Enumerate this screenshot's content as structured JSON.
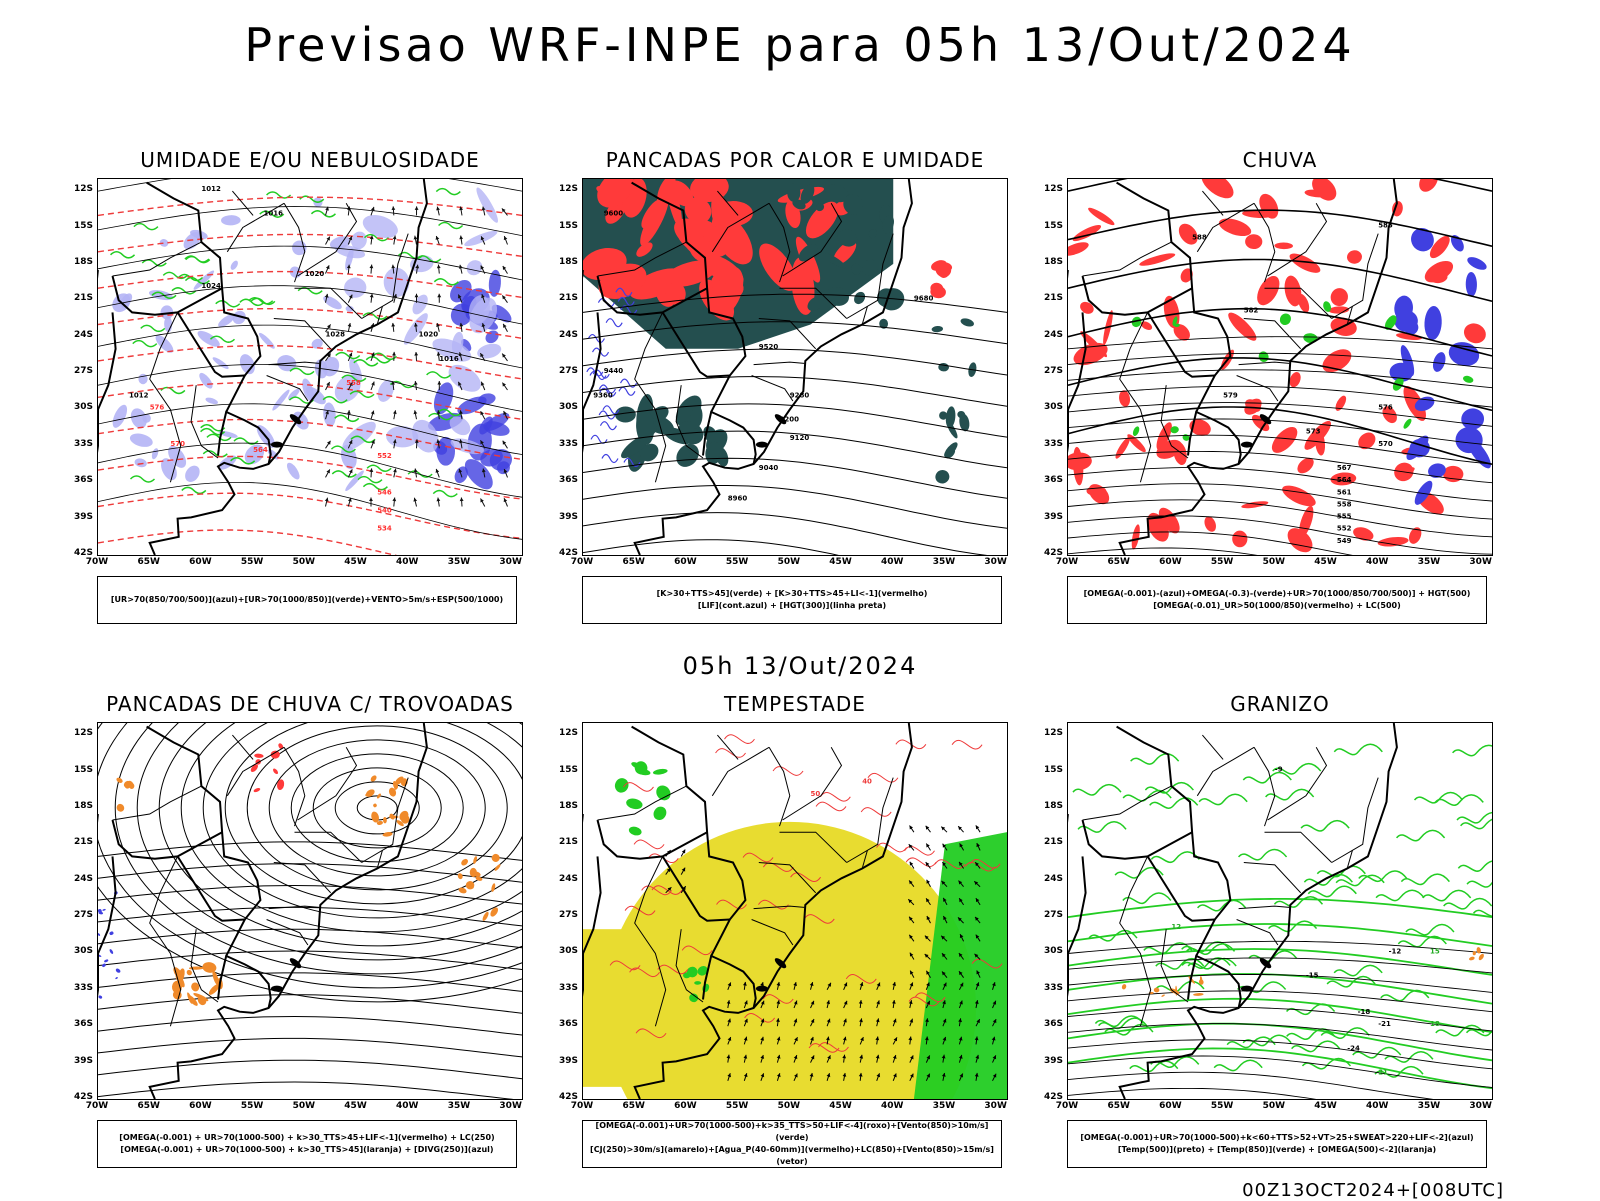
{
  "header": {
    "title": "Previsao WRF-INPE  para 05h 13/Out/2024"
  },
  "middle_title": "05h 13/Out/2024",
  "footer": "00Z13OCT2024+[008UTC]",
  "axes": {
    "lat_labels": [
      "12S",
      "15S",
      "18S",
      "21S",
      "24S",
      "27S",
      "30S",
      "33S",
      "36S",
      "39S",
      "42S"
    ],
    "lon_labels": [
      "70W",
      "65W",
      "60W",
      "55W",
      "50W",
      "45W",
      "40W",
      "35W",
      "30W"
    ]
  },
  "colors": {
    "humidity_blue": "#b4b4f5",
    "deep_blue": "#4040e0",
    "green": "#22cc22",
    "red": "#ff3a3a",
    "dark_teal": "#244f4f",
    "orange": "#f08a2a",
    "yellow": "#e8dc30",
    "border_black": "#000000"
  },
  "panels": [
    {
      "id": "umidade",
      "title": "UMIDADE E/OU NEBULOSIDADE",
      "legend_lines": [
        "[UR>70(850/700/500)](azul)+[UR>70(1000/850)](verde)+VENTO>5m/s+ESP(500/1000)"
      ],
      "contour_labels": [
        "1012",
        "1016",
        "1020",
        "1024",
        "1028",
        "1020",
        "1016",
        "1012",
        "576",
        "570",
        "564",
        "558",
        "552",
        "546",
        "540",
        "534"
      ]
    },
    {
      "id": "pancadas-calor",
      "title": "PANCADAS POR CALOR E UMIDADE",
      "legend_lines": [
        "[K>30+TTS>45](verde) + [K>30+TTS>45+LI<-1](vermelho)",
        "[LIF](cont.azul) + [HGT(300)](linha preta)"
      ],
      "contour_labels": [
        "9680",
        "9600",
        "9520",
        "9440",
        "9360",
        "9280",
        "9200",
        "9120",
        "9040",
        "8960"
      ]
    },
    {
      "id": "chuva",
      "title": "CHUVA",
      "legend_lines": [
        "[OMEGA(-0.001)-(azul)+OMEGA(-0.3)-(verde)+UR>70(1000/850/700/500)] + HGT(500)",
        "[OMEGA(-0.01)_UR>50(1000/850)(vermelho) + LC(500)"
      ],
      "contour_labels": [
        "588",
        "585",
        "582",
        "579",
        "576",
        "573",
        "570",
        "567",
        "564",
        "561",
        "558",
        "555",
        "552",
        "549"
      ]
    },
    {
      "id": "trovoadas",
      "title": "PANCADAS DE CHUVA C/ TROVOADAS",
      "legend_lines": [
        "[OMEGA(-0.001) + UR>70(1000-500) + k>30_TTS>45+LIF<-1](vermelho) + LC(250)",
        "[OMEGA(-0.001) + UR>70(1000-500) + k>30_TTS>45](laranja) + [DIVG(250)](azul)"
      ],
      "contour_labels": []
    },
    {
      "id": "tempestade",
      "title": "TEMPESTADE",
      "legend_lines": [
        "[OMEGA(-0.001)+UR>70(1000-500)+k>35_TTS>50+LIF<-4](roxo)+[Vento(850)>10m/s](verde)",
        "[CJ(250)>30m/s](amarelo)+[Agua_P(40-60mm)](vermelho)+LC(850)+[Vento(850)>15m/s](vetor)"
      ],
      "contour_labels": [
        "40",
        "50"
      ]
    },
    {
      "id": "granizo",
      "title": "GRANIZO",
      "legend_lines": [
        "[OMEGA(-0.001)+UR>70(1000-500)+k<60+TTS>52+VT>25+SWEAT>220+LIF<-2](azul)",
        "[Temp(500)](preto) + [Temp(850)](verde) + [OMEGA(500)<-2](laranja)"
      ],
      "contour_labels": [
        "-9",
        "-12",
        "-15",
        "-18",
        "-21",
        "-24",
        "12",
        "15",
        "18",
        "21"
      ]
    }
  ]
}
